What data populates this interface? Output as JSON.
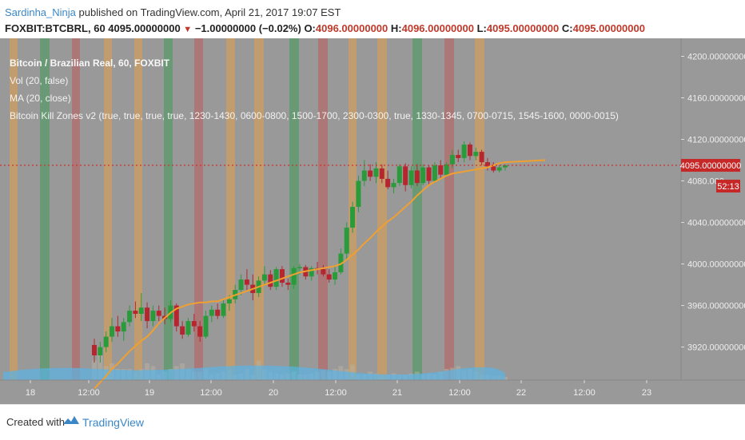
{
  "header": {
    "author": "Sardinha_Ninja",
    "published": "published on TradingView.com, April 21, 2017 19:07 EST",
    "symbol": "FOXBIT:BTCBRL, 60",
    "price": "4095.00000000",
    "change": "−1.00000000 (−0.02%)",
    "o_label": "O:",
    "o_value": "4096.00000000",
    "h_label": "H:",
    "h_value": "4096.00000000",
    "l_label": "L:",
    "l_value": "4095.00000000",
    "c_label": "C:",
    "c_value": "4095.00000000"
  },
  "legend": {
    "title": "Bitcoin / Brazilian Real, 60, FOXBIT",
    "vol": "Vol (20, false)",
    "ma": "MA (20, close)",
    "killzones": "Bitcoin Kill Zones v2 (true, true, true, true, 1230-1430, 0600-0800, 1500-1700, 2300-0300, true, 1330-1345, 0700-0715, 1545-1600, 0000-0015)"
  },
  "footer": {
    "created": "Created with",
    "brand": "TradingView"
  },
  "colors": {
    "background": "#999999",
    "up": "#2a9b3b",
    "down": "#b5262f",
    "ma": "#f0a030",
    "current_line": "#d32f2f",
    "volume": "#5ab4e6",
    "zone_green": "#2e9b4a",
    "zone_red": "#c0504d",
    "zone_orange": "#f0a03a"
  },
  "chart_data": {
    "type": "candlestick",
    "title": "Bitcoin / Brazilian Real, 60, FOXBIT",
    "y_axis_labels": [
      "4200.00000000",
      "4160.00000000",
      "4120.00000000",
      "4080.000",
      "4040.00000000",
      "4000.00000000",
      "3960.00000000",
      "3920.00000000"
    ],
    "y_tick_values": [
      4200,
      4160,
      4120,
      4080,
      4040,
      4000,
      3960,
      3920
    ],
    "ylim": [
      3902,
      4205
    ],
    "x_axis_labels": [
      "18",
      "12:00",
      "19",
      "12:00",
      "20",
      "12:00",
      "21",
      "12:00",
      "22",
      "12:00",
      "23"
    ],
    "current_price_label": "4095.00000000",
    "current_price": 4095,
    "countdown": "52:13",
    "candles": [
      [
        3922,
        3928,
        3905,
        3912
      ],
      [
        3912,
        3925,
        3905,
        3920
      ],
      [
        3920,
        3935,
        3915,
        3930
      ],
      [
        3930,
        3948,
        3925,
        3940
      ],
      [
        3940,
        3950,
        3930,
        3935
      ],
      [
        3935,
        3948,
        3926,
        3944
      ],
      [
        3944,
        3960,
        3940,
        3955
      ],
      [
        3955,
        3964,
        3948,
        3952
      ],
      [
        3952,
        3972,
        3945,
        3958
      ],
      [
        3958,
        3963,
        3938,
        3945
      ],
      [
        3945,
        3960,
        3940,
        3955
      ],
      [
        3955,
        3960,
        3945,
        3950
      ],
      [
        3950,
        3958,
        3942,
        3947
      ],
      [
        3947,
        3965,
        3944,
        3960
      ],
      [
        3960,
        3962,
        3935,
        3940
      ],
      [
        3940,
        3945,
        3928,
        3932
      ],
      [
        3932,
        3948,
        3930,
        3945
      ],
      [
        3945,
        3952,
        3935,
        3940
      ],
      [
        3940,
        3945,
        3925,
        3930
      ],
      [
        3930,
        3955,
        3928,
        3950
      ],
      [
        3950,
        3960,
        3944,
        3956
      ],
      [
        3956,
        3962,
        3947,
        3950
      ],
      [
        3950,
        3965,
        3948,
        3962
      ],
      [
        3962,
        3970,
        3955,
        3966
      ],
      [
        3966,
        3980,
        3962,
        3975
      ],
      [
        3975,
        3990,
        3970,
        3985
      ],
      [
        3985,
        3995,
        3975,
        3980
      ],
      [
        3980,
        3990,
        3965,
        3972
      ],
      [
        3972,
        3988,
        3968,
        3984
      ],
      [
        3984,
        3998,
        3980,
        3990
      ],
      [
        3990,
        3994,
        3975,
        3978
      ],
      [
        3978,
        3997,
        3975,
        3995
      ],
      [
        3995,
        3998,
        3978,
        3982
      ],
      [
        3982,
        3986,
        3975,
        3980
      ],
      [
        3980,
        3998,
        3976,
        3996
      ],
      [
        3996,
        4000,
        3990,
        3997
      ],
      [
        3997,
        3999,
        3985,
        3988
      ],
      [
        3988,
        3998,
        3984,
        3996
      ],
      [
        3996,
        4002,
        3990,
        3995
      ],
      [
        3995,
        3999,
        3988,
        3990
      ],
      [
        3990,
        3995,
        3982,
        3985
      ],
      [
        3985,
        3998,
        3980,
        3992
      ],
      [
        3992,
        4015,
        3990,
        4010
      ],
      [
        4010,
        4040,
        4005,
        4035
      ],
      [
        4035,
        4060,
        4030,
        4055
      ],
      [
        4055,
        4085,
        4050,
        4080
      ],
      [
        4080,
        4100,
        4075,
        4090
      ],
      [
        4090,
        4096,
        4080,
        4084
      ],
      [
        4084,
        4098,
        4078,
        4092
      ],
      [
        4092,
        4096,
        4078,
        4082
      ],
      [
        4082,
        4090,
        4072,
        4074
      ],
      [
        4074,
        4082,
        4068,
        4078
      ],
      [
        4078,
        4096,
        4075,
        4094
      ],
      [
        4094,
        4097,
        4070,
        4076
      ],
      [
        4076,
        4094,
        4073,
        4090
      ],
      [
        4090,
        4096,
        4075,
        4078
      ],
      [
        4078,
        4096,
        4076,
        4093
      ],
      [
        4093,
        4095,
        4075,
        4080
      ],
      [
        4080,
        4098,
        4078,
        4095
      ],
      [
        4095,
        4100,
        4082,
        4086
      ],
      [
        4086,
        4098,
        4084,
        4096
      ],
      [
        4096,
        4110,
        4092,
        4105
      ],
      [
        4105,
        4110,
        4098,
        4102
      ],
      [
        4102,
        4118,
        4098,
        4115
      ],
      [
        4115,
        4117,
        4100,
        4104
      ],
      [
        4104,
        4112,
        4100,
        4108
      ],
      [
        4108,
        4110,
        4095,
        4098
      ],
      [
        4098,
        4102,
        4090,
        4094
      ],
      [
        4094,
        4098,
        4088,
        4090
      ],
      [
        4090,
        4095,
        4088,
        4093
      ],
      [
        4093,
        4096,
        4090,
        4095
      ]
    ],
    "ma": [
      3880,
      3886,
      3892,
      3899,
      3904,
      3910,
      3916,
      3921,
      3926,
      3930,
      3936,
      3943,
      3948,
      3953,
      3957,
      3959,
      3961,
      3962,
      3963,
      3963,
      3964,
      3964,
      3966,
      3968,
      3970,
      3972,
      3974,
      3976,
      3978,
      3980,
      3982,
      3984,
      3986,
      3988,
      3990,
      3992,
      3993,
      3994,
      3995,
      3996,
      3997,
      3998,
      4000,
      4004,
      4009,
      4014,
      4020,
      4025,
      4031,
      4036,
      4041,
      4045,
      4050,
      4055,
      4060,
      4066,
      4071,
      4076,
      4079,
      4082,
      4085,
      4087,
      4088,
      4089,
      4090,
      4091,
      4092,
      4093,
      4095,
      4097,
      4098
    ],
    "volume": [
      0.35,
      0.6,
      0.25,
      0.3,
      0.2,
      0.2,
      0.2,
      0.15,
      0.2,
      0.3,
      0.25,
      0.1,
      0.15,
      0.2,
      0.25,
      0.3,
      0.2,
      0.15,
      0.15,
      0.2,
      0.1,
      0.12,
      0.15,
      0.18,
      0.1,
      0.12,
      0.2,
      0.1,
      0.35,
      0.2,
      0.15,
      0.12,
      0.1,
      0.12,
      0.15,
      0.1,
      0.1,
      0.12,
      0.15,
      0.18,
      0.15,
      0.2,
      0.25,
      0.2,
      0.28,
      0.1,
      0.1,
      0.15,
      0.12,
      0.1,
      0.1,
      0.12,
      0.1,
      0.1,
      0.12,
      0.15,
      0.1,
      0.12,
      0.1,
      0.15,
      0.2,
      0.22,
      0.25,
      0.18,
      0.2,
      0.15,
      0.1,
      0.1,
      0.08,
      0.08,
      0.06
    ]
  }
}
